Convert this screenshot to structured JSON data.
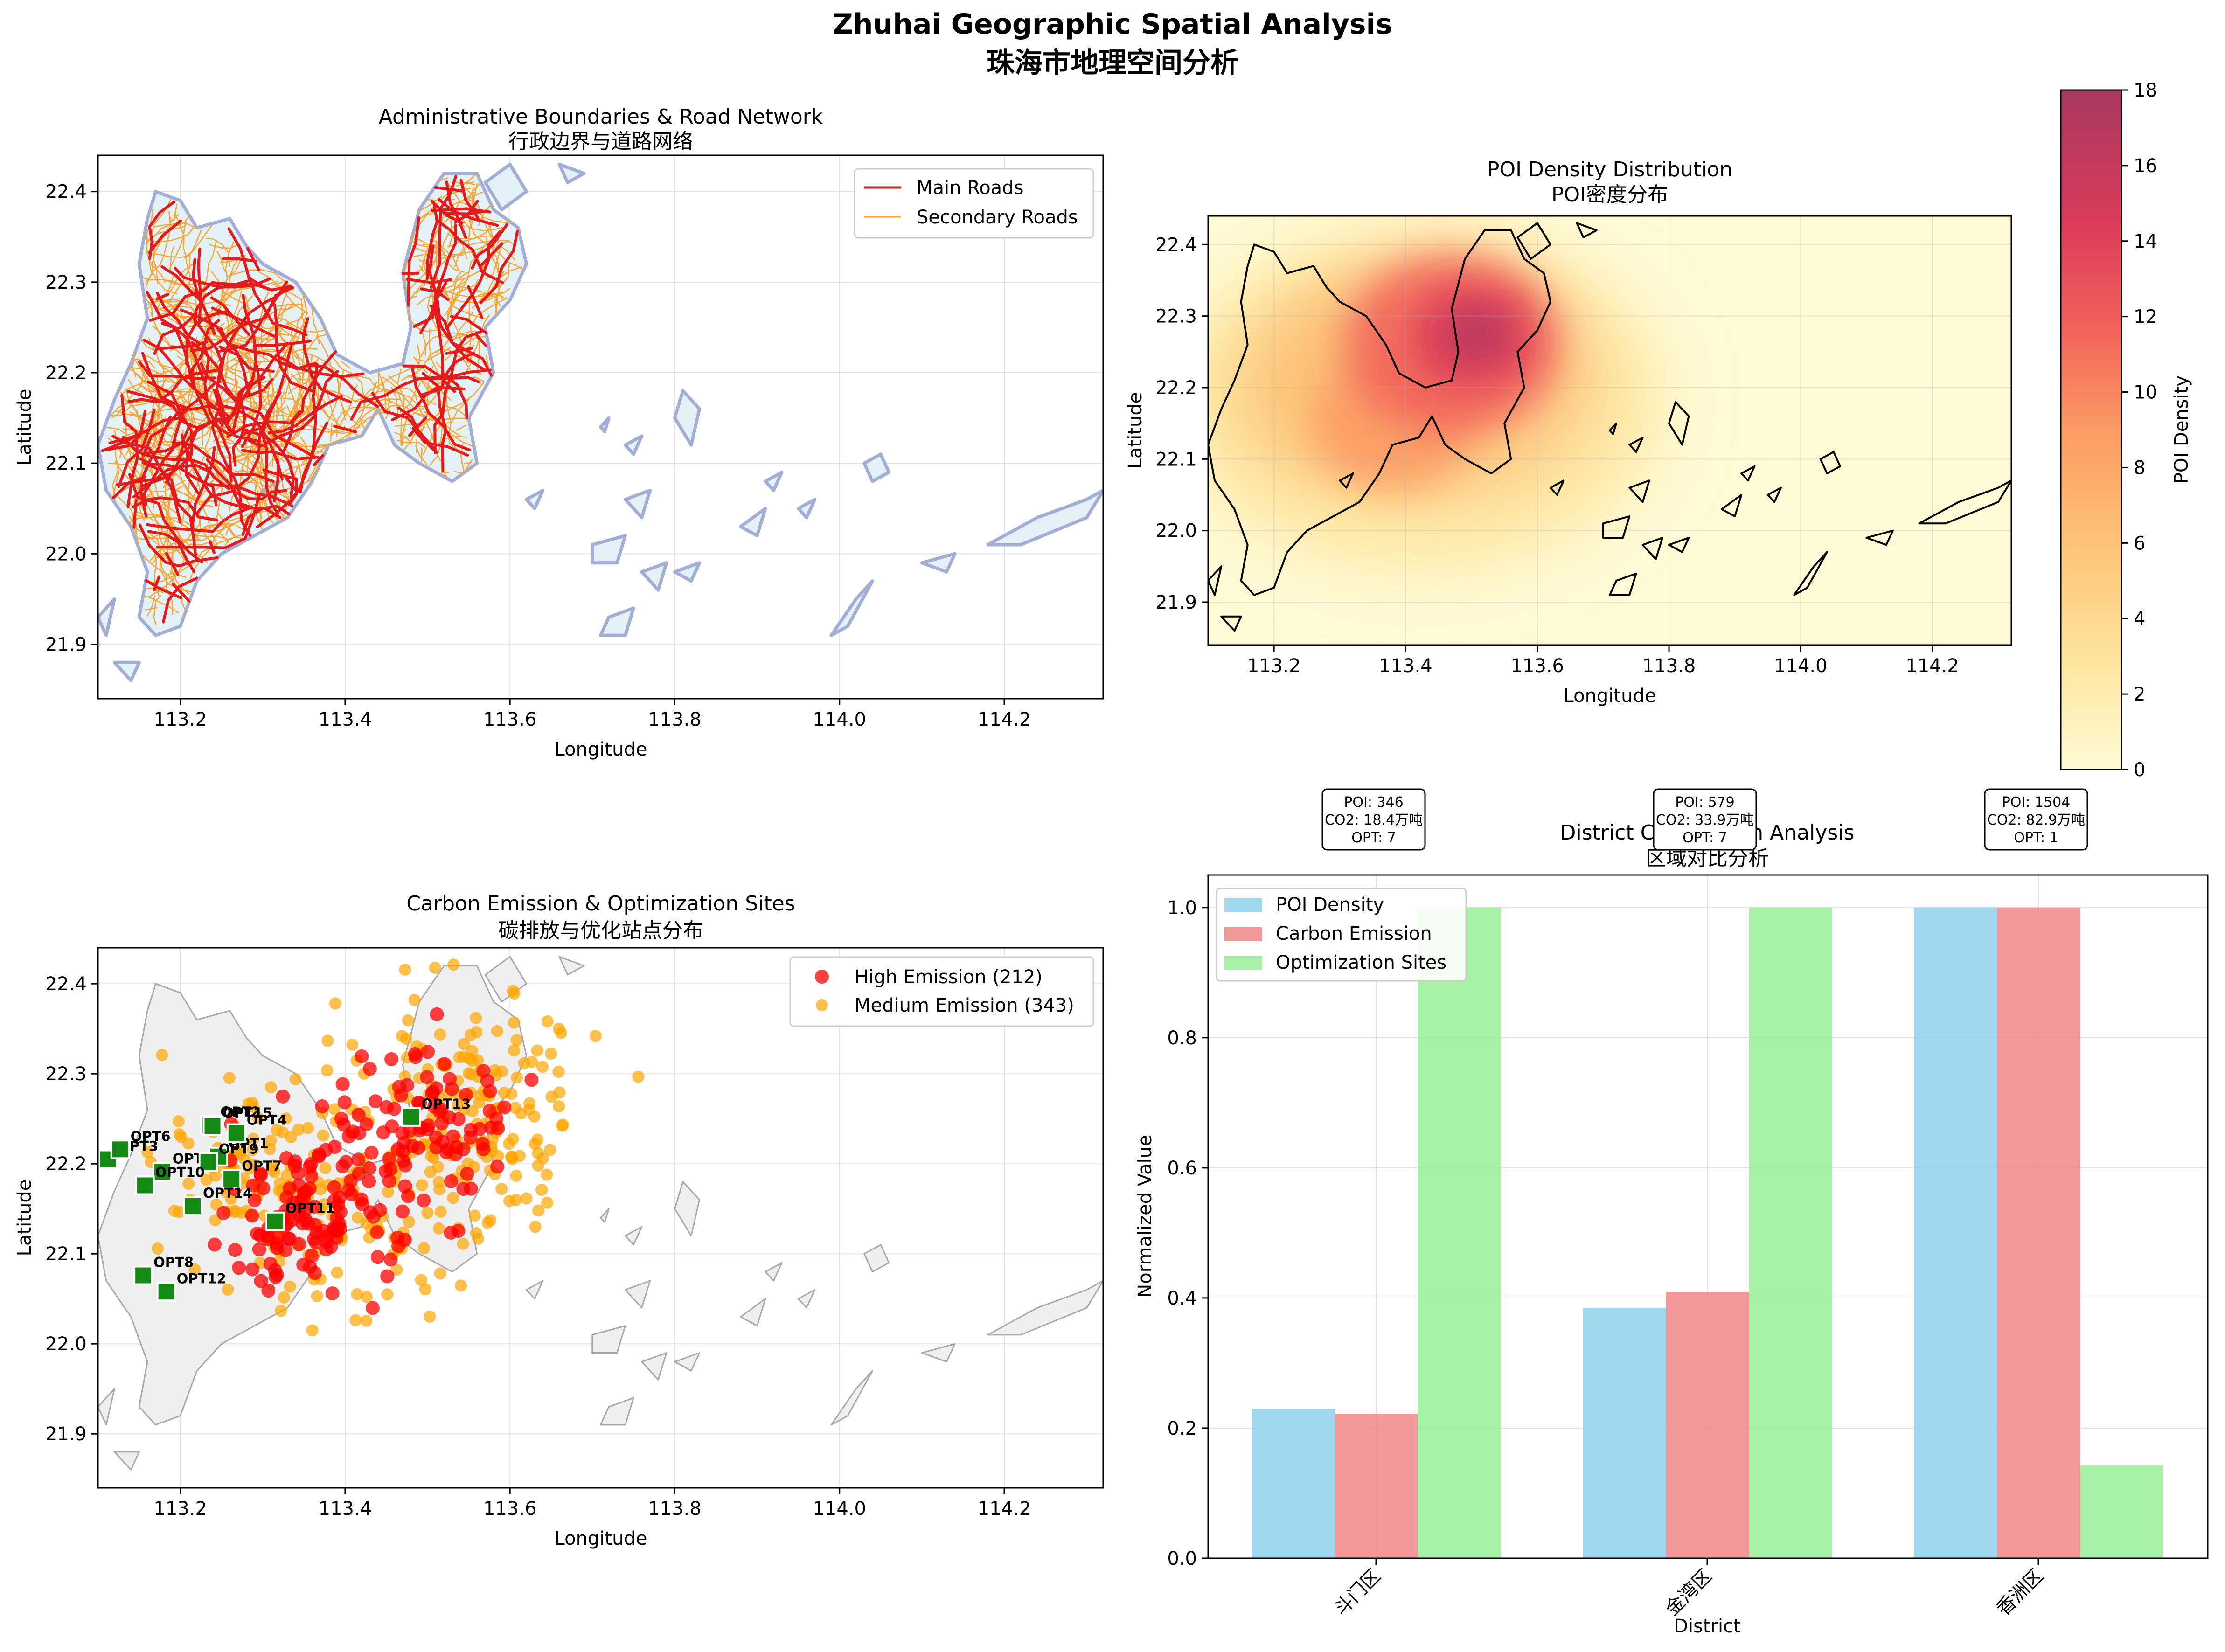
{
  "figure": {
    "suptitle_en": "Zhuhai Geographic Spatial Analysis",
    "suptitle_cn": "珠海市地理空间分析"
  },
  "colors": {
    "land_fill": "#e4f2f8",
    "boundary": "#a3aed6",
    "main_road": "#e41a1c",
    "secondary_road": "#f7a531",
    "high_emission": "#ff0000",
    "medium_emission": "#ffa500",
    "opt_site": "#138a13",
    "bar_poi": "#87ceeb",
    "bar_carbon": "#f08080",
    "bar_opt": "#90ee90",
    "grey_land": "#efefef"
  },
  "map_panels": {
    "xlabel": "Longitude",
    "ylabel": "Latitude",
    "xlim": [
      113.1,
      114.32
    ],
    "ylim": [
      21.84,
      22.44
    ],
    "x_ticks": [
      "113.2",
      "113.4",
      "113.6",
      "113.8",
      "114.0",
      "114.2"
    ],
    "y_ticks": [
      "21.9",
      "22.0",
      "22.1",
      "22.2",
      "22.3",
      "22.4"
    ]
  },
  "road_panel": {
    "title_en": "Administrative Boundaries & Road Network",
    "title_cn": "行政边界与道路网络",
    "legend": [
      "Main Roads",
      "Secondary Roads"
    ]
  },
  "density_panel": {
    "title_en": "POI Density Distribution",
    "title_cn": "POI密度分布",
    "colorbar_label": "POI Density",
    "colorbar_ticks": [
      "0",
      "2",
      "4",
      "6",
      "8",
      "10",
      "12",
      "14",
      "16",
      "18"
    ]
  },
  "emission_panel": {
    "title_en": "Carbon Emission & Optimization Sites",
    "title_cn": "碳排放与优化站点分布",
    "legend": [
      "High Emission (212)",
      "Medium Emission (343)"
    ],
    "opt_sites": [
      {
        "label": "OPT1",
        "lon": 113.246,
        "lat": 22.208
      },
      {
        "label": "OPT2",
        "lon": 113.236,
        "lat": 22.243
      },
      {
        "label": "OPT3",
        "lon": 113.112,
        "lat": 22.205
      },
      {
        "label": "OPT4",
        "lon": 113.268,
        "lat": 22.234
      },
      {
        "label": "OPT5",
        "lon": 113.178,
        "lat": 22.191
      },
      {
        "label": "OPT6",
        "lon": 113.127,
        "lat": 22.216
      },
      {
        "label": "OPT7",
        "lon": 113.262,
        "lat": 22.183
      },
      {
        "label": "OPT8",
        "lon": 113.155,
        "lat": 22.076
      },
      {
        "label": "OPT9",
        "lon": 113.234,
        "lat": 22.202
      },
      {
        "label": "OPT10",
        "lon": 113.157,
        "lat": 22.176
      },
      {
        "label": "OPT11",
        "lon": 113.315,
        "lat": 22.136
      },
      {
        "label": "OPT12",
        "lon": 113.183,
        "lat": 22.058
      },
      {
        "label": "OPT13",
        "lon": 113.48,
        "lat": 22.252
      },
      {
        "label": "OPT14",
        "lon": 113.215,
        "lat": 22.153
      },
      {
        "label": "OPT15",
        "lon": 113.239,
        "lat": 22.242
      }
    ]
  },
  "chart_data": {
    "type": "bar",
    "title_en": "District Comparison Analysis",
    "title_cn": "区域对比分析",
    "xlabel": "District",
    "ylabel": "Normalized Value",
    "ylim": [
      0,
      1.05
    ],
    "y_ticks": [
      "0.0",
      "0.2",
      "0.4",
      "0.6",
      "0.8",
      "1.0"
    ],
    "categories": [
      "斗门区",
      "金湾区",
      "香洲区"
    ],
    "series": [
      {
        "name": "POI Density",
        "values": [
          0.23,
          0.385,
          1.0
        ]
      },
      {
        "name": "Carbon Emission",
        "values": [
          0.222,
          0.409,
          1.0
        ]
      },
      {
        "name": "Optimization Sites",
        "values": [
          1.0,
          1.0,
          0.143
        ]
      }
    ],
    "annotations": [
      [
        "POI: 346",
        "CO2: 18.4万吨",
        "OPT: 7"
      ],
      [
        "POI: 579",
        "CO2: 33.9万吨",
        "OPT: 7"
      ],
      [
        "POI: 1504",
        "CO2: 82.9万吨",
        "OPT: 1"
      ]
    ],
    "legend_position": "upper-left"
  }
}
